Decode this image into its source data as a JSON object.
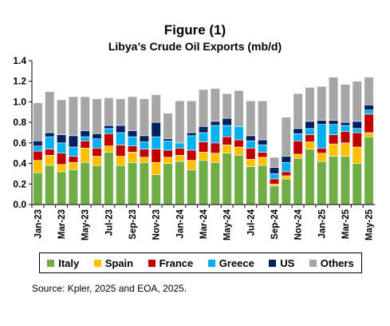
{
  "figure": {
    "title": "Figure (1)",
    "subtitle": "Libya’s Crude Oil Exports (mb/d)",
    "source": "Source: Kpler, 2025 and EOA, 2025."
  },
  "colors": {
    "Italy": "#70ad47",
    "Spain": "#ffc000",
    "France": "#c00000",
    "Greece": "#00b0f0",
    "US": "#002060",
    "Others": "#a6a6a6"
  },
  "chart_data": {
    "type": "bar",
    "stacked": true,
    "ylim": [
      0,
      1.4
    ],
    "yticks": [
      "0.0",
      "0.2",
      "0.4",
      "0.6",
      "0.8",
      "1.0",
      "1.2",
      "1.4"
    ],
    "grid": false,
    "legend_position": "bottom",
    "categories": [
      "Jan-23",
      "Feb-23",
      "Mar-23",
      "Apr-23",
      "May-23",
      "Jun-23",
      "Jul-23",
      "Aug-23",
      "Sep-23",
      "Oct-23",
      "Nov-23",
      "Dec-23",
      "Jan-24",
      "Feb-24",
      "Mar-24",
      "Apr-24",
      "May-24",
      "Jun-24",
      "Jul-24",
      "Aug-24",
      "Sep-24",
      "Oct-24",
      "Nov-24",
      "Dec-24",
      "Jan-25",
      "Feb-25",
      "Mar-25",
      "Apr-25",
      "May-25"
    ],
    "tick_labels": [
      "Jan-23",
      "Mar-23",
      "May-23",
      "Jul-23",
      "Sep-23",
      "Nov-23",
      "Jan-24",
      "Mar-24",
      "May-24",
      "Jul-24",
      "Sep-24",
      "Nov-24",
      "Jan-25",
      "Mar-25",
      "May-25"
    ],
    "series": [
      {
        "name": "Italy",
        "values": [
          0.31,
          0.38,
          0.32,
          0.34,
          0.41,
          0.38,
          0.51,
          0.38,
          0.41,
          0.41,
          0.29,
          0.4,
          0.42,
          0.34,
          0.43,
          0.41,
          0.5,
          0.48,
          0.37,
          0.38,
          0.18,
          0.25,
          0.45,
          0.54,
          0.42,
          0.47,
          0.47,
          0.4,
          0.66
        ]
      },
      {
        "name": "Spain",
        "values": [
          0.12,
          0.1,
          0.07,
          0.07,
          0.14,
          0.09,
          0.06,
          0.09,
          0.1,
          0.05,
          0.12,
          0.06,
          0.06,
          0.09,
          0.08,
          0.09,
          0.08,
          0.08,
          0.07,
          0.08,
          0.02,
          0.03,
          0.04,
          0.07,
          0.08,
          0.12,
          0.13,
          0.16,
          0.04
        ]
      },
      {
        "name": "France",
        "values": [
          0.09,
          0.06,
          0.11,
          0.06,
          0.07,
          0.08,
          0.12,
          0.11,
          0.06,
          0.08,
          0.13,
          0.07,
          0.07,
          0.1,
          0.1,
          0.1,
          0.08,
          0.07,
          0.11,
          0.05,
          0.05,
          0.04,
          0.13,
          0.07,
          0.05,
          0.09,
          0.11,
          0.14,
          0.18
        ]
      },
      {
        "name": "Greece",
        "values": [
          0.05,
          0.12,
          0.1,
          0.09,
          0.04,
          0.09,
          0.05,
          0.12,
          0.09,
          0.07,
          0.12,
          0.09,
          0.05,
          0.14,
          0.09,
          0.17,
          0.11,
          0.13,
          0.07,
          0.07,
          0.05,
          0.09,
          0.07,
          0.06,
          0.23,
          0.1,
          0.06,
          0.04,
          0.04
        ]
      },
      {
        "name": "US",
        "values": [
          0.05,
          0.04,
          0.08,
          0.11,
          0.06,
          0.05,
          0.03,
          0.07,
          0.06,
          0.06,
          0.14,
          0.02,
          0.0,
          0.03,
          0.06,
          0.04,
          0.07,
          0.0,
          0.05,
          0.05,
          0.06,
          0.06,
          0.05,
          0.07,
          0.04,
          0.04,
          0.03,
          0.07,
          0.05
        ]
      },
      {
        "name": "Others",
        "values": [
          0.37,
          0.4,
          0.34,
          0.38,
          0.33,
          0.34,
          0.27,
          0.26,
          0.33,
          0.36,
          0.27,
          0.25,
          0.41,
          0.31,
          0.36,
          0.32,
          0.24,
          0.35,
          0.34,
          0.38,
          0.1,
          0.38,
          0.34,
          0.33,
          0.33,
          0.42,
          0.37,
          0.39,
          0.27
        ]
      }
    ]
  }
}
